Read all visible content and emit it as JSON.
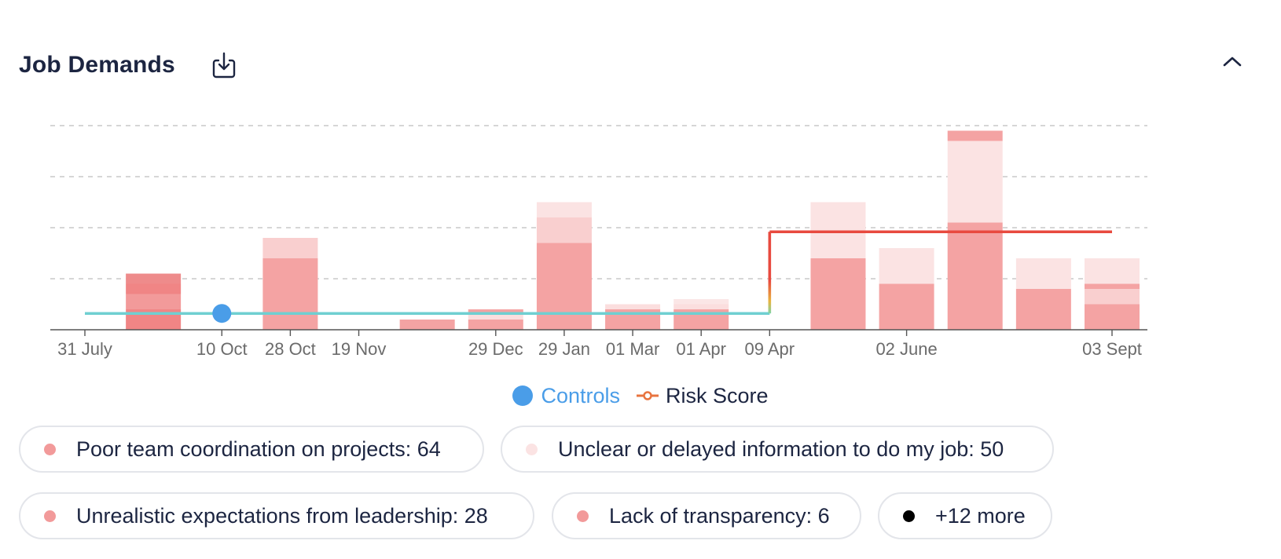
{
  "header": {
    "title": "Job Demands"
  },
  "icons": {
    "download": "download-icon",
    "collapse": "chevron-up-icon"
  },
  "colors": {
    "grid": "#c9c9c9",
    "axis": "#555555",
    "tick_text": "#6b6b6b",
    "controls": "#4a9de8",
    "controls_line": "#6fcfd1",
    "risk": "#e84a3f"
  },
  "chart_data": {
    "type": "bar",
    "title": "Job Demands",
    "grid": true,
    "ylim": [
      0,
      20
    ],
    "x_ticks": [
      {
        "label": "31 July",
        "x": 0
      },
      {
        "label": "10 Oct",
        "x": 2
      },
      {
        "label": "28 Oct",
        "x": 3
      },
      {
        "label": "19 Nov",
        "x": 4
      },
      {
        "label": "29 Dec",
        "x": 6
      },
      {
        "label": "29 Jan",
        "x": 7
      },
      {
        "label": "01 Mar",
        "x": 8
      },
      {
        "label": "01 Apr",
        "x": 9
      },
      {
        "label": "09 Apr",
        "x": 10
      },
      {
        "label": "02 June",
        "x": 12
      },
      {
        "label": "03 Sept",
        "x": 15
      }
    ],
    "x_range": [
      -0.5,
      15.5
    ],
    "bars": [
      {
        "x": 1,
        "segments": [
          {
            "v": 2.0,
            "c": "#f08585"
          },
          {
            "v": 1.5,
            "c": "#f29a9a"
          },
          {
            "v": 1.0,
            "c": "#f08585"
          },
          {
            "v": 1.0,
            "c": "#ee8b8b"
          }
        ]
      },
      {
        "x": 3,
        "segments": [
          {
            "v": 7.0,
            "c": "#f4a3a3"
          },
          {
            "v": 2.0,
            "c": "#f9cfcf"
          }
        ]
      },
      {
        "x": 5,
        "segments": [
          {
            "v": 1.0,
            "c": "#f4a3a3"
          }
        ]
      },
      {
        "x": 6,
        "segments": [
          {
            "v": 1.0,
            "c": "#f4a3a3"
          },
          {
            "v": 0.6,
            "c": "#fbdede"
          },
          {
            "v": 0.4,
            "c": "#f4a3a3"
          }
        ]
      },
      {
        "x": 7,
        "segments": [
          {
            "v": 8.5,
            "c": "#f4a3a3"
          },
          {
            "v": 2.5,
            "c": "#f9cfcf"
          },
          {
            "v": 1.5,
            "c": "#fbe3e3"
          }
        ]
      },
      {
        "x": 8,
        "segments": [
          {
            "v": 2.0,
            "c": "#f4a3a3"
          },
          {
            "v": 0.5,
            "c": "#fbdede"
          }
        ]
      },
      {
        "x": 9,
        "segments": [
          {
            "v": 2.0,
            "c": "#f4a3a3"
          },
          {
            "v": 0.5,
            "c": "#fbdede"
          },
          {
            "v": 0.5,
            "c": "#fbe6e6"
          }
        ]
      },
      {
        "x": 11,
        "segments": [
          {
            "v": 7.0,
            "c": "#f4a3a3"
          },
          {
            "v": 5.5,
            "c": "#fbe3e3"
          }
        ]
      },
      {
        "x": 12,
        "segments": [
          {
            "v": 4.5,
            "c": "#f4a3a3"
          },
          {
            "v": 3.5,
            "c": "#fbe3e3"
          }
        ]
      },
      {
        "x": 13,
        "segments": [
          {
            "v": 10.5,
            "c": "#f4a3a3"
          },
          {
            "v": 8.0,
            "c": "#fbe3e3"
          },
          {
            "v": 1.0,
            "c": "#f4a3a3"
          }
        ]
      },
      {
        "x": 14,
        "segments": [
          {
            "v": 4.0,
            "c": "#f4a3a3"
          },
          {
            "v": 3.0,
            "c": "#fbe3e3"
          }
        ]
      },
      {
        "x": 15,
        "segments": [
          {
            "v": 2.5,
            "c": "#f4a3a3"
          },
          {
            "v": 1.5,
            "c": "#f9cfcf"
          },
          {
            "v": 0.5,
            "c": "#f4a3a3"
          },
          {
            "v": 2.5,
            "c": "#fbe3e3"
          }
        ]
      }
    ],
    "risk_score": [
      {
        "x": 0,
        "y": 1.6
      },
      {
        "x": 10,
        "y": 1.6
      },
      {
        "x": 10,
        "y": 9.6
      },
      {
        "x": 15,
        "y": 9.6
      }
    ],
    "controls": [
      {
        "x": 2,
        "y": 1.6
      }
    ],
    "legend": {
      "controls": "Controls",
      "risk": "Risk Score"
    }
  },
  "filters": [
    {
      "label": "Poor team coordination on projects: 64",
      "color": "#f29a9a"
    },
    {
      "label": "Unclear or delayed information to do my job: 50",
      "color": "#fbe3e3"
    },
    {
      "label": "Unrealistic expectations from leadership: 28",
      "color": "#f29a9a"
    },
    {
      "label": "Lack of transparency: 6",
      "color": "#f29a9a"
    },
    {
      "label": "+12 more",
      "color": "#000000"
    }
  ]
}
